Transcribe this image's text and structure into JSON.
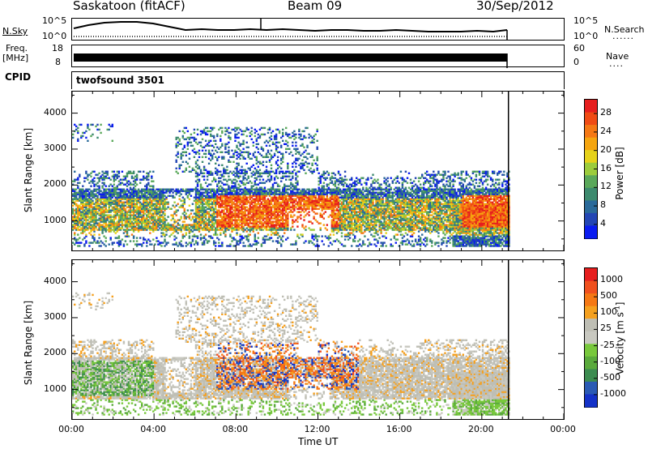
{
  "header": {
    "station": "Saskatoon (fitACF)",
    "beam": "Beam 09",
    "date": "30/Sep/2012"
  },
  "strip_labels": {
    "nsky": "N.Sky",
    "nsky_ticks": [
      "10^5",
      "10^0"
    ],
    "nsearch": "N.Search",
    "nsearch_ticks": [
      "10^5",
      "10^0"
    ],
    "freq": "Freq.",
    "freq_unit": "[MHz]",
    "freq_ticks": [
      "18",
      "8"
    ],
    "nave": "Nave",
    "nave_ticks": [
      "60",
      "0"
    ],
    "cpid": "CPID",
    "cpid_value": "twofsound 3501",
    "dots": "......",
    "nave_dots": "...."
  },
  "colors": {
    "power_scale": [
      "#0a1cf0",
      "#2346b4",
      "#2a6a9a",
      "#3d8a6e",
      "#5aa85a",
      "#9ccc3c",
      "#e6d21a",
      "#f5a50f",
      "#f57814",
      "#f04b14",
      "#e61e1e"
    ],
    "velocity_scale": [
      "#1432c8",
      "#2a5ab4",
      "#3c8c50",
      "#5aaa3c",
      "#78c83c",
      "#c8c8c0",
      "#bebeb4",
      "#f5a01e",
      "#f57814",
      "#f0501e",
      "#e61e1e"
    ]
  },
  "chart_data": [
    {
      "type": "heatmap",
      "name": "power",
      "ylabel": "Slant Range [km]",
      "xlabel": "Time UT",
      "x_ticks": [
        "00:00",
        "04:00",
        "08:00",
        "12:00",
        "16:00",
        "20:00",
        "00:00"
      ],
      "y_ticks": [
        "1000",
        "2000",
        "3000",
        "4000"
      ],
      "ylim": [
        180,
        4600
      ],
      "xlim_hours": [
        0,
        24
      ],
      "data_end_hours": 21.3,
      "colorbar": {
        "label": "Power [dB]",
        "ticks": [
          "28",
          "24",
          "20",
          "16",
          "12",
          "8",
          "4"
        ],
        "range": [
          0,
          30
        ]
      }
    },
    {
      "type": "heatmap",
      "name": "velocity",
      "ylabel": "Slant Range [km]",
      "xlabel": "Time UT",
      "x_ticks": [
        "00:00",
        "04:00",
        "08:00",
        "12:00",
        "16:00",
        "20:00",
        "00:00"
      ],
      "y_ticks": [
        "1000",
        "2000",
        "3000",
        "4000"
      ],
      "ylim": [
        180,
        4600
      ],
      "xlim_hours": [
        0,
        24
      ],
      "data_end_hours": 21.3,
      "colorbar": {
        "label": "Velocity [m s",
        "label_sup": "-1",
        "label_close": "]",
        "ticks": [
          "1000",
          "500",
          "100",
          "25",
          "-25",
          "-100",
          "-500",
          "-1000"
        ],
        "range": [
          -1000,
          1000
        ]
      }
    }
  ],
  "x_axis": {
    "label": "Time UT",
    "ticks": [
      "00:00",
      "04:00",
      "08:00",
      "12:00",
      "16:00",
      "20:00",
      "00:00"
    ]
  }
}
